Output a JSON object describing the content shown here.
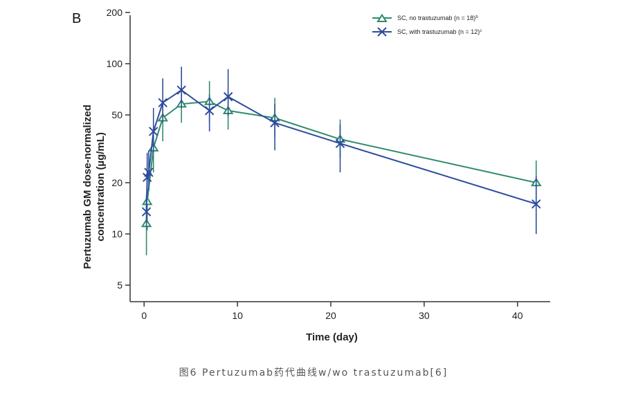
{
  "panel_label": "B",
  "caption": "图6 Pertuzumab药代曲线w/wo trastuzumab[6]",
  "colors": {
    "no_trastuzumab": "#2e8b6a",
    "with_trastuzumab": "#2e4c9c",
    "axis": "#333333"
  },
  "chart_data": {
    "type": "line",
    "xlabel": "Time (day)",
    "ylabel": "Pertuzumab GM dose-normalized concentration (µg/mL)",
    "ylabel_lines": [
      "Pertuzumab GM dose-normalized",
      "concentration (µg/mL)"
    ],
    "xlim": [
      -1.5,
      43.5
    ],
    "ylim": [
      4.0,
      200
    ],
    "yscale": "log",
    "x_ticks": [
      0,
      10,
      20,
      30,
      40
    ],
    "x_tick_labels": [
      "0",
      "10",
      "20",
      "30",
      "40"
    ],
    "y_ticks": [
      5,
      10,
      20,
      50,
      100,
      200
    ],
    "y_tick_labels": [
      "5",
      "10",
      "20",
      "50",
      "100",
      "200"
    ],
    "grid": false,
    "legend_position": "top-right",
    "series": [
      {
        "name": "SC, no trastuzumab (n = 18)",
        "superscript": "b",
        "marker": "triangle",
        "color": "#2e8b6a",
        "x": [
          0.25,
          0.33,
          1,
          2,
          4,
          7,
          9,
          14,
          21,
          42
        ],
        "y": [
          11.5,
          15.5,
          32,
          48,
          58,
          60,
          53,
          48,
          36,
          20
        ],
        "err_low": [
          7.5,
          10.5,
          23,
          35,
          45,
          45,
          41,
          37,
          28,
          15
        ],
        "err_high": [
          16.5,
          26,
          40,
          60,
          72,
          79,
          68,
          63,
          47,
          27
        ]
      },
      {
        "name": "SC, with trastuzumab (n = 12)",
        "superscript": "c",
        "marker": "x",
        "color": "#2e4c9c",
        "x": [
          0.25,
          0.33,
          0.5,
          1,
          2,
          4,
          7,
          9,
          14,
          21,
          42
        ],
        "y": [
          13.5,
          21.5,
          23,
          40,
          59,
          70,
          53,
          64,
          45,
          34,
          15
        ],
        "err_low": [
          11,
          17,
          18,
          30,
          45,
          55,
          40,
          49,
          31,
          23,
          10
        ],
        "err_high": [
          17,
          30,
          31,
          55,
          82,
          96,
          66,
          93,
          58,
          44,
          22
        ]
      }
    ]
  }
}
